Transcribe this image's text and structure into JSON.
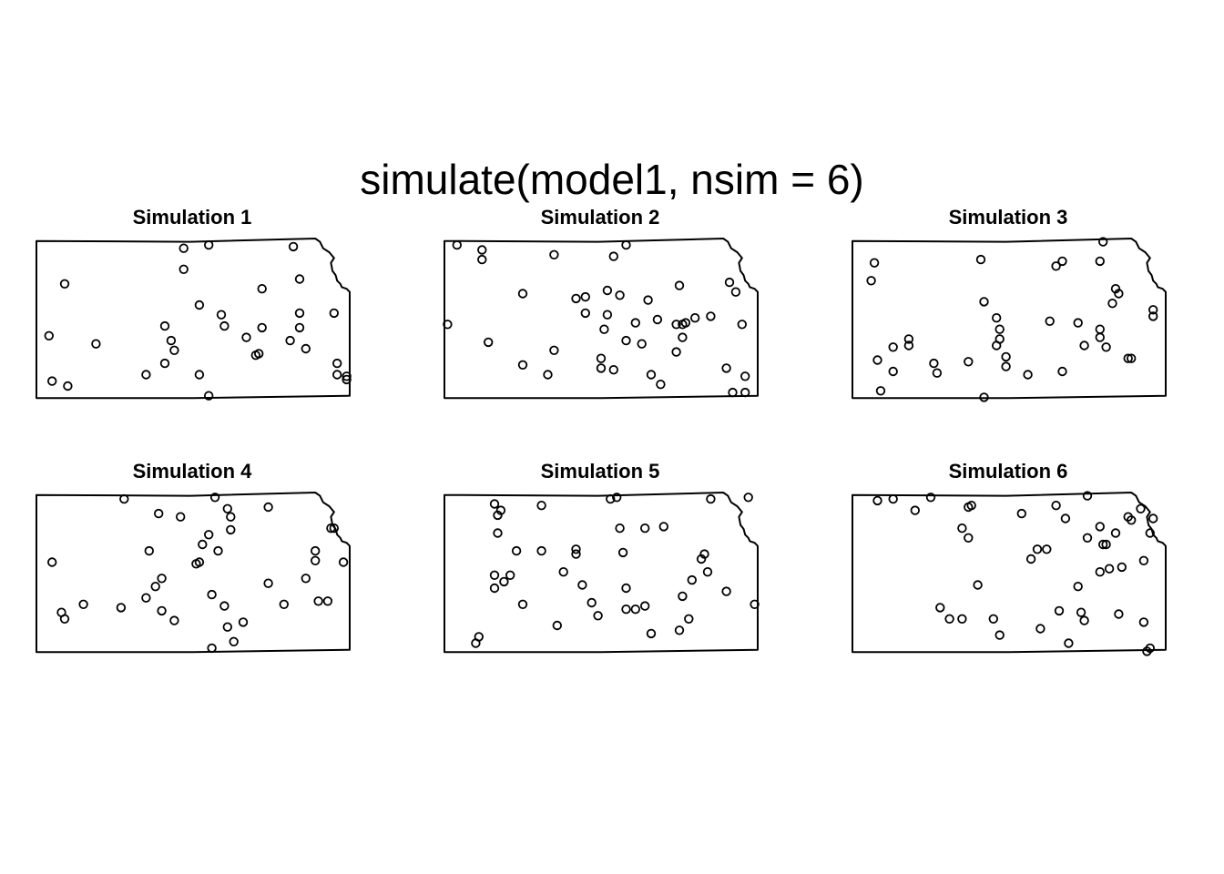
{
  "title": "simulate(model1, nsim = 6)",
  "chart_data": {
    "type": "scatter",
    "title": "simulate(model1, nsim = 6)",
    "layout": "2 rows x 3 columns",
    "marker": "open-circle",
    "boundary": "Kansas state outline",
    "panels": [
      {
        "title": "Simulation 1",
        "points": [
          [
            0.04,
            0.4
          ],
          [
            0.05,
            0.12
          ],
          [
            0.09,
            0.72
          ],
          [
            0.1,
            0.09
          ],
          [
            0.19,
            0.35
          ],
          [
            0.35,
            0.16
          ],
          [
            0.41,
            0.46
          ],
          [
            0.43,
            0.37
          ],
          [
            0.41,
            0.23
          ],
          [
            0.44,
            0.31
          ],
          [
            0.47,
            0.94
          ],
          [
            0.47,
            0.81
          ],
          [
            0.52,
            0.59
          ],
          [
            0.52,
            0.16
          ],
          [
            0.55,
            0.03
          ],
          [
            0.55,
            0.96
          ],
          [
            0.59,
            0.53
          ],
          [
            0.6,
            0.46
          ],
          [
            0.67,
            0.39
          ],
          [
            0.7,
            0.28
          ],
          [
            0.71,
            0.29
          ],
          [
            0.72,
            0.69
          ],
          [
            0.72,
            0.45
          ],
          [
            0.82,
            0.95
          ],
          [
            0.81,
            0.37
          ],
          [
            0.84,
            0.45
          ],
          [
            0.84,
            0.54
          ],
          [
            0.84,
            0.75
          ],
          [
            0.86,
            0.32
          ],
          [
            0.95,
            0.54
          ],
          [
            0.96,
            0.23
          ],
          [
            0.96,
            0.16
          ],
          [
            0.99,
            0.15
          ],
          [
            0.99,
            0.13
          ]
        ]
      },
      {
        "title": "Simulation 2",
        "points": [
          [
            0.01,
            0.47
          ],
          [
            0.04,
            0.96
          ],
          [
            0.12,
            0.93
          ],
          [
            0.12,
            0.87
          ],
          [
            0.14,
            0.36
          ],
          [
            0.25,
            0.66
          ],
          [
            0.25,
            0.22
          ],
          [
            0.33,
            0.16
          ],
          [
            0.35,
            0.9
          ],
          [
            0.35,
            0.31
          ],
          [
            0.42,
            0.63
          ],
          [
            0.45,
            0.64
          ],
          [
            0.45,
            0.54
          ],
          [
            0.5,
            0.26
          ],
          [
            0.5,
            0.2
          ],
          [
            0.51,
            0.44
          ],
          [
            0.52,
            0.53
          ],
          [
            0.52,
            0.68
          ],
          [
            0.54,
            0.19
          ],
          [
            0.54,
            0.89
          ],
          [
            0.56,
            0.65
          ],
          [
            0.58,
            0.37
          ],
          [
            0.58,
            0.96
          ],
          [
            0.61,
            0.48
          ],
          [
            0.63,
            0.35
          ],
          [
            0.65,
            0.62
          ],
          [
            0.66,
            0.16
          ],
          [
            0.68,
            0.5
          ],
          [
            0.69,
            0.1
          ],
          [
            0.74,
            0.47
          ],
          [
            0.75,
            0.71
          ],
          [
            0.74,
            0.3
          ],
          [
            0.76,
            0.47
          ],
          [
            0.76,
            0.39
          ],
          [
            0.77,
            0.48
          ],
          [
            0.8,
            0.51
          ],
          [
            0.85,
            0.52
          ],
          [
            0.9,
            0.2
          ],
          [
            0.91,
            0.73
          ],
          [
            0.92,
            0.05
          ],
          [
            0.93,
            0.67
          ],
          [
            0.95,
            0.47
          ],
          [
            0.96,
            0.15
          ],
          [
            0.96,
            0.05
          ]
        ]
      },
      {
        "title": "Simulation 3",
        "points": [
          [
            0.06,
            0.74
          ],
          [
            0.07,
            0.85
          ],
          [
            0.08,
            0.25
          ],
          [
            0.09,
            0.06
          ],
          [
            0.13,
            0.33
          ],
          [
            0.13,
            0.18
          ],
          [
            0.18,
            0.34
          ],
          [
            0.18,
            0.38
          ],
          [
            0.26,
            0.23
          ],
          [
            0.27,
            0.17
          ],
          [
            0.37,
            0.24
          ],
          [
            0.41,
            0.87
          ],
          [
            0.42,
            0.61
          ],
          [
            0.42,
            0.02
          ],
          [
            0.46,
            0.51
          ],
          [
            0.46,
            0.34
          ],
          [
            0.47,
            0.44
          ],
          [
            0.47,
            0.38
          ],
          [
            0.49,
            0.21
          ],
          [
            0.49,
            0.27
          ],
          [
            0.56,
            0.16
          ],
          [
            0.63,
            0.49
          ],
          [
            0.65,
            0.83
          ],
          [
            0.67,
            0.86
          ],
          [
            0.67,
            0.18
          ],
          [
            0.72,
            0.48
          ],
          [
            0.74,
            0.34
          ],
          [
            0.79,
            0.44
          ],
          [
            0.79,
            0.86
          ],
          [
            0.8,
            0.98
          ],
          [
            0.79,
            0.39
          ],
          [
            0.81,
            0.33
          ],
          [
            0.83,
            0.6
          ],
          [
            0.84,
            0.69
          ],
          [
            0.85,
            0.66
          ],
          [
            0.88,
            0.26
          ],
          [
            0.89,
            0.26
          ],
          [
            0.96,
            0.56
          ],
          [
            0.96,
            0.52
          ]
        ]
      },
      {
        "title": "Simulation 4",
        "points": [
          [
            0.05,
            0.57
          ],
          [
            0.08,
            0.26
          ],
          [
            0.09,
            0.22
          ],
          [
            0.15,
            0.31
          ],
          [
            0.28,
            0.96
          ],
          [
            0.27,
            0.29
          ],
          [
            0.35,
            0.35
          ],
          [
            0.36,
            0.64
          ],
          [
            0.38,
            0.42
          ],
          [
            0.4,
            0.47
          ],
          [
            0.39,
            0.87
          ],
          [
            0.4,
            0.27
          ],
          [
            0.44,
            0.21
          ],
          [
            0.46,
            0.85
          ],
          [
            0.51,
            0.56
          ],
          [
            0.52,
            0.57
          ],
          [
            0.53,
            0.68
          ],
          [
            0.55,
            0.74
          ],
          [
            0.56,
            0.37
          ],
          [
            0.56,
            0.04
          ],
          [
            0.57,
            0.97
          ],
          [
            0.58,
            0.64
          ],
          [
            0.6,
            0.3
          ],
          [
            0.61,
            0.9
          ],
          [
            0.61,
            0.17
          ],
          [
            0.62,
            0.77
          ],
          [
            0.62,
            0.85
          ],
          [
            0.63,
            0.08
          ],
          [
            0.66,
            0.2
          ],
          [
            0.74,
            0.44
          ],
          [
            0.74,
            0.91
          ],
          [
            0.79,
            0.31
          ],
          [
            0.86,
            0.47
          ],
          [
            0.89,
            0.58
          ],
          [
            0.89,
            0.64
          ],
          [
            0.9,
            0.33
          ],
          [
            0.93,
            0.33
          ],
          [
            0.94,
            0.78
          ],
          [
            0.95,
            0.78
          ],
          [
            0.98,
            0.57
          ]
        ]
      },
      {
        "title": "Simulation 5",
        "points": [
          [
            0.1,
            0.07
          ],
          [
            0.11,
            0.11
          ],
          [
            0.16,
            0.41
          ],
          [
            0.16,
            0.49
          ],
          [
            0.17,
            0.75
          ],
          [
            0.17,
            0.86
          ],
          [
            0.16,
            0.93
          ],
          [
            0.18,
            0.89
          ],
          [
            0.19,
            0.45
          ],
          [
            0.21,
            0.49
          ],
          [
            0.23,
            0.64
          ],
          [
            0.25,
            0.31
          ],
          [
            0.31,
            0.64
          ],
          [
            0.31,
            0.92
          ],
          [
            0.36,
            0.18
          ],
          [
            0.38,
            0.51
          ],
          [
            0.42,
            0.62
          ],
          [
            0.42,
            0.65
          ],
          [
            0.44,
            0.43
          ],
          [
            0.47,
            0.32
          ],
          [
            0.49,
            0.24
          ],
          [
            0.53,
            0.96
          ],
          [
            0.55,
            0.97
          ],
          [
            0.56,
            0.78
          ],
          [
            0.57,
            0.63
          ],
          [
            0.58,
            0.41
          ],
          [
            0.58,
            0.28
          ],
          [
            0.61,
            0.28
          ],
          [
            0.64,
            0.3
          ],
          [
            0.64,
            0.78
          ],
          [
            0.66,
            0.13
          ],
          [
            0.7,
            0.79
          ],
          [
            0.75,
            0.15
          ],
          [
            0.76,
            0.36
          ],
          [
            0.78,
            0.22
          ],
          [
            0.79,
            0.46
          ],
          [
            0.82,
            0.59
          ],
          [
            0.84,
            0.51
          ],
          [
            0.83,
            0.62
          ],
          [
            0.85,
            0.96
          ],
          [
            0.9,
            0.39
          ],
          [
            0.97,
            0.97
          ],
          [
            0.99,
            0.31
          ]
        ]
      },
      {
        "title": "Simulation 6",
        "points": [
          [
            0.08,
            0.95
          ],
          [
            0.13,
            0.96
          ],
          [
            0.2,
            0.89
          ],
          [
            0.25,
            0.97
          ],
          [
            0.28,
            0.29
          ],
          [
            0.31,
            0.22
          ],
          [
            0.35,
            0.22
          ],
          [
            0.35,
            0.78
          ],
          [
            0.37,
            0.72
          ],
          [
            0.37,
            0.91
          ],
          [
            0.38,
            0.92
          ],
          [
            0.4,
            0.43
          ],
          [
            0.45,
            0.22
          ],
          [
            0.47,
            0.12
          ],
          [
            0.54,
            0.87
          ],
          [
            0.57,
            0.59
          ],
          [
            0.59,
            0.65
          ],
          [
            0.6,
            0.16
          ],
          [
            0.62,
            0.65
          ],
          [
            0.65,
            0.92
          ],
          [
            0.66,
            0.27
          ],
          [
            0.68,
            0.84
          ],
          [
            0.69,
            0.07
          ],
          [
            0.72,
            0.42
          ],
          [
            0.73,
            0.26
          ],
          [
            0.74,
            0.21
          ],
          [
            0.75,
            0.98
          ],
          [
            0.75,
            0.72
          ],
          [
            0.79,
            0.51
          ],
          [
            0.79,
            0.79
          ],
          [
            0.8,
            0.68
          ],
          [
            0.81,
            0.68
          ],
          [
            0.82,
            0.53
          ],
          [
            0.84,
            0.75
          ],
          [
            0.86,
            0.54
          ],
          [
            0.85,
            0.25
          ],
          [
            0.88,
            0.85
          ],
          [
            0.89,
            0.83
          ],
          [
            0.92,
            0.9
          ],
          [
            0.93,
            0.2
          ],
          [
            0.93,
            0.58
          ],
          [
            0.94,
            0.02
          ],
          [
            0.95,
            0.04
          ],
          [
            0.95,
            0.75
          ],
          [
            0.96,
            0.84
          ]
        ]
      }
    ]
  }
}
